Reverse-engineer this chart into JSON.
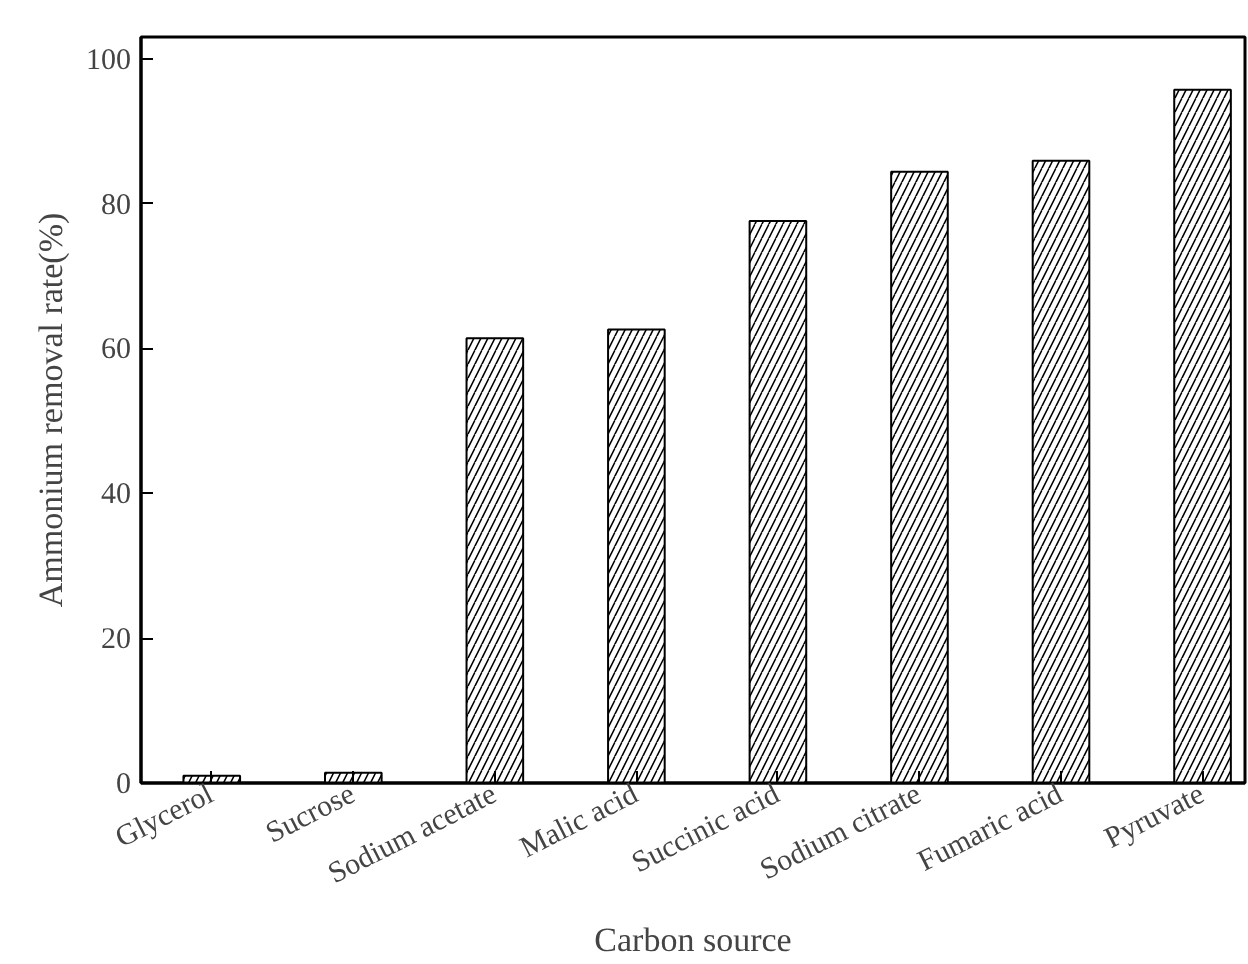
{
  "chart_data": {
    "type": "bar",
    "xlabel": "Carbon source",
    "ylabel": "Ammonium removal rate(%)",
    "categories": [
      "Glycerol",
      "Sucrose",
      "Sodium acetate",
      "Malic acid",
      "Succinic acid",
      "Sodium citrate",
      "Fumaric acid",
      "Pyruvate"
    ],
    "values": [
      1.0,
      1.4,
      61.4,
      62.6,
      77.6,
      84.4,
      85.9,
      95.7
    ],
    "color": "#000000",
    "ylim": [
      0,
      103
    ],
    "yticks": [
      0,
      20,
      40,
      60,
      80,
      100
    ],
    "grid": false
  }
}
